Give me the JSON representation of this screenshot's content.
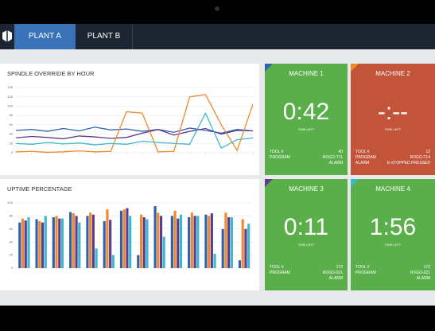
{
  "nav": {
    "tabs": [
      "PLANT A",
      "PLANT B"
    ]
  },
  "chart_data": [
    {
      "type": "line",
      "title": "SPINDLE OVERRIDE BY HOUR",
      "categories": [
        null,
        null,
        null,
        null,
        null,
        null,
        null,
        null,
        null,
        null,
        null,
        null,
        null,
        null,
        null,
        null
      ],
      "series": [
        {
          "name": "Machine 1",
          "color": "#2f62ae",
          "values": [
            48,
            50,
            46,
            52,
            47,
            55,
            49,
            51,
            46,
            50,
            44,
            53,
            48,
            42,
            50,
            47
          ]
        },
        {
          "name": "Machine 3",
          "color": "#5b3c8f",
          "values": [
            32,
            35,
            33,
            30,
            36,
            34,
            31,
            33,
            42,
            50,
            38,
            46,
            52,
            40,
            48,
            47
          ]
        },
        {
          "name": "Machine 2",
          "color": "#ee8a2e",
          "values": [
            2,
            3,
            1,
            2,
            4,
            2,
            3,
            88,
            85,
            2,
            3,
            120,
            125,
            60,
            5,
            104
          ]
        },
        {
          "name": "Machine 4",
          "color": "#3bb8cf",
          "values": [
            20,
            18,
            22,
            19,
            21,
            17,
            20,
            18,
            25,
            22,
            20,
            18,
            85,
            10,
            28,
            32
          ]
        }
      ],
      "ylim": [
        0,
        140
      ],
      "yticks": [
        0,
        20,
        40,
        60,
        80,
        100,
        120,
        140
      ],
      "grid": true
    },
    {
      "type": "bar",
      "title": "UPTIME PERCENTAGE",
      "categories": [
        null,
        null,
        null,
        null,
        null,
        null,
        null,
        null,
        null,
        null,
        null,
        null,
        null,
        null
      ],
      "series": [
        {
          "name": "Machine 1",
          "color": "#2f62ae",
          "values": [
            70,
            75,
            78,
            86,
            80,
            72,
            88,
            20,
            95,
            80,
            78,
            82,
            60,
            12
          ]
        },
        {
          "name": "Machine 2",
          "color": "#ee8a2e",
          "values": [
            76,
            72,
            80,
            84,
            85,
            90,
            90,
            82,
            85,
            88,
            85,
            80,
            85,
            75
          ]
        },
        {
          "name": "Machine 3",
          "color": "#5b3c8f",
          "values": [
            73,
            70,
            76,
            80,
            82,
            74,
            92,
            78,
            80,
            76,
            80,
            84,
            78,
            60
          ]
        },
        {
          "name": "Machine 4",
          "color": "#3bb8cf",
          "values": [
            78,
            80,
            76,
            70,
            30,
            20,
            80,
            75,
            48,
            82,
            80,
            22,
            78,
            68
          ]
        }
      ],
      "ylim": [
        0,
        100
      ],
      "yticks": [
        0,
        20,
        40,
        60,
        80,
        100
      ],
      "grid": true
    }
  ],
  "machines": [
    {
      "name": "MACHINE 1",
      "time": "0:42",
      "time_label": "TIME LEFT",
      "color": "#5aaf4b",
      "accent": "#2f62ae",
      "rows": [
        {
          "label": "TOOL #",
          "value": "40"
        },
        {
          "label": "PROGRAM",
          "value": "ROGO-T11"
        },
        {
          "label": "ALARM"
        }
      ]
    },
    {
      "name": "MACHINE 2",
      "time": "-:--",
      "time_label": "TIME LEFT",
      "color": "#c2543a",
      "accent": "#ee8a2e",
      "rows": [
        {
          "label": "TOOL #",
          "value": "12"
        },
        {
          "label": "PROGRAM",
          "value": "ROGO-T14"
        },
        {
          "label": "ALARM",
          "value": "E-STOPPED PRESSED"
        }
      ]
    },
    {
      "name": "MACHINE 3",
      "time": "0:11",
      "time_label": "TIME LEFT",
      "color": "#5aaf4b",
      "accent": "#5b3c8f",
      "rows": [
        {
          "label": "TOOL #",
          "value": "172"
        },
        {
          "label": "PROGRAM",
          "value": "ROGO-021"
        },
        {
          "label": "ALARM"
        }
      ]
    },
    {
      "name": "MACHINE 4",
      "time": "1:56",
      "time_label": "TIME LEFT",
      "color": "#5aaf4b",
      "accent": "#3bb8cf",
      "rows": [
        {
          "label": "TOOL #",
          "value": "172"
        },
        {
          "label": "PROGRAM",
          "value": "ROGO-021"
        },
        {
          "label": "ALARM"
        }
      ]
    }
  ]
}
